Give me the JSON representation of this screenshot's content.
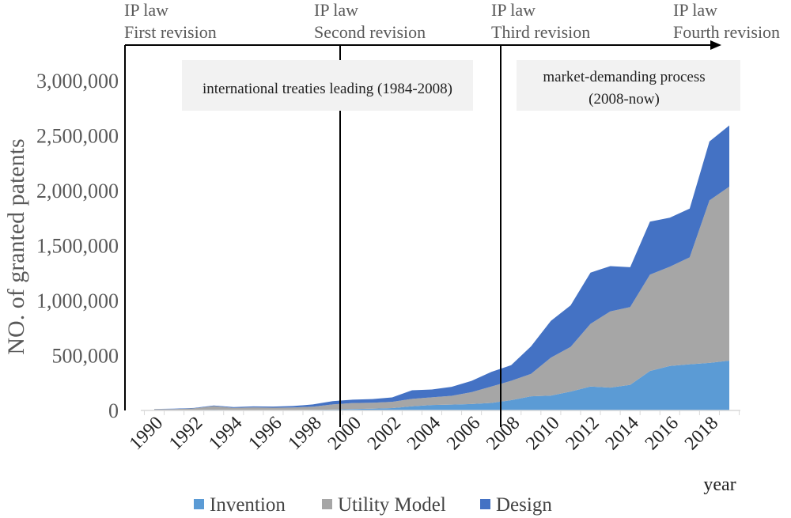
{
  "chart_data": {
    "type": "area",
    "stacked": true,
    "x": [
      1990,
      1991,
      1992,
      1993,
      1994,
      1995,
      1996,
      1997,
      1998,
      1999,
      2000,
      2001,
      2002,
      2003,
      2004,
      2005,
      2006,
      2007,
      2008,
      2009,
      2010,
      2011,
      2012,
      2013,
      2014,
      2015,
      2016,
      2017,
      2018,
      2019
    ],
    "series": [
      {
        "name": "Invention",
        "color": "#5b9bd5",
        "values": [
          4000,
          4000,
          3500,
          6500,
          3900,
          3400,
          2900,
          3500,
          4700,
          7600,
          12700,
          16300,
          21500,
          37200,
          49400,
          53300,
          58000,
          68000,
          93700,
          128500,
          135100,
          172100,
          217100,
          207700,
          233200,
          359300,
          404200,
          420100,
          432100,
          452900
        ]
      },
      {
        "name": "Utility Model",
        "color": "#a6a6a6",
        "values": [
          8000,
          9000,
          15000,
          33000,
          20000,
          25000,
          22000,
          24000,
          30000,
          47000,
          55000,
          54000,
          57000,
          68000,
          70000,
          80000,
          108000,
          150000,
          176000,
          204000,
          345000,
          406000,
          571000,
          693000,
          708000,
          876000,
          903000,
          973000,
          1479000,
          1583000
        ]
      },
      {
        "name": "Design",
        "color": "#4472c4",
        "values": [
          2000,
          3000,
          4000,
          6000,
          7000,
          8000,
          10000,
          13000,
          20000,
          30000,
          30000,
          33000,
          40000,
          78000,
          71000,
          82000,
          103000,
          133000,
          142000,
          250000,
          335000,
          378000,
          466000,
          412000,
          362000,
          482000,
          447000,
          443000,
          536000,
          557000
        ]
      }
    ],
    "ylim": [
      0,
      3000000
    ],
    "yticks": [
      0,
      500000,
      1000000,
      1500000,
      2000000,
      2500000,
      3000000
    ],
    "ytick_labels": [
      "0",
      "500,000",
      "1,000,000",
      "1,500,000",
      "2,000,000",
      "2,500,000",
      "3,000,000"
    ],
    "xticks": [
      1990,
      1992,
      1994,
      1996,
      1998,
      2000,
      2002,
      2004,
      2006,
      2008,
      2010,
      2012,
      2014,
      2016,
      2018
    ],
    "ylabel": "NO. of granted patents",
    "xlabel": "year",
    "legend_position": "bottom",
    "grid": false,
    "revisions": [
      {
        "year": 1990,
        "line1": "IP law",
        "line2": "First revision"
      },
      {
        "year": 2000,
        "line1": "IP law",
        "line2": "Second  revision"
      },
      {
        "year": 2008,
        "line1": "IP law",
        "line2": "Third revision"
      },
      {
        "year": 2020,
        "line1": "IP law",
        "line2": "Fourth revision"
      }
    ],
    "phases": [
      {
        "lines": [
          "international treaties leading (1984-2008)"
        ]
      },
      {
        "lines": [
          "market-demanding process",
          "(2008-now)"
        ]
      }
    ]
  }
}
